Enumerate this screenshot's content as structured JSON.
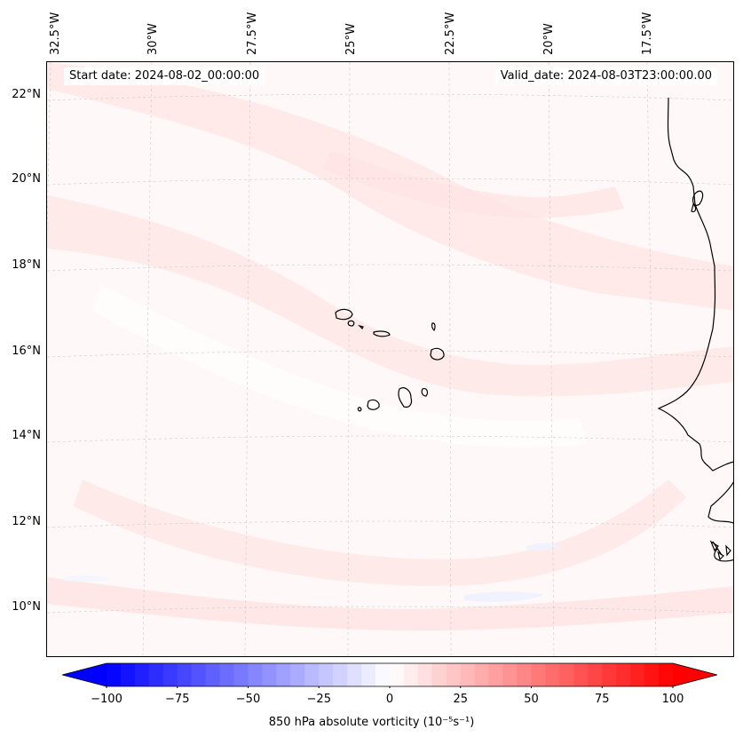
{
  "map": {
    "lon_ticks": [
      "32.5°W",
      "30°W",
      "27.5°W",
      "25°W",
      "22.5°W",
      "20°W",
      "17.5°W"
    ],
    "lat_ticks": [
      "22°N",
      "20°N",
      "18°N",
      "16°N",
      "14°N",
      "12°N",
      "10°N"
    ],
    "start_date": "Start date: 2024-08-02_00:00:00",
    "valid_date": "Valid_date: 2024-08-03T23:00:00.00",
    "variable": "850 hPa absolute vorticity",
    "units": "10⁻⁵s⁻¹",
    "colors": {
      "negative": "#0000ff",
      "neutral": "#ffffff",
      "positive": "#ff0000",
      "coast": "#000000",
      "field_light": "#ffe9e9",
      "field_base": "#fff8f8"
    }
  },
  "colorbar": {
    "label": "850 hPa absolute vorticity (10⁻⁵s⁻¹)",
    "ticks": [
      "−100",
      "−75",
      "−50",
      "−25",
      "0",
      "25",
      "50",
      "75",
      "100"
    ],
    "min": -100,
    "max": 100,
    "extend": "both"
  }
}
